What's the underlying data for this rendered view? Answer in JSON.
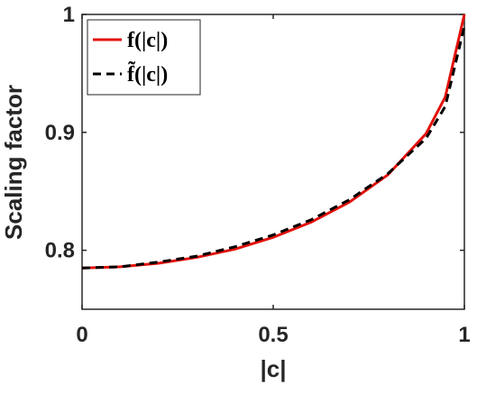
{
  "chart_data": {
    "type": "line",
    "x_label": "|c|",
    "y_label": "Scaling factor",
    "x": [
      0,
      0.1,
      0.2,
      0.3,
      0.4,
      0.5,
      0.6,
      0.7,
      0.8,
      0.9,
      0.95,
      1
    ],
    "series": [
      {
        "name": "f(|c|)",
        "color": "#e3120b",
        "dash": false,
        "values": [
          0.785,
          0.786,
          0.789,
          0.794,
          0.801,
          0.811,
          0.824,
          0.841,
          0.864,
          0.899,
          0.93,
          1.0
        ]
      },
      {
        "name": "f̃(|c|)",
        "color": "#000000",
        "dash": true,
        "values": [
          0.785,
          0.786,
          0.79,
          0.795,
          0.803,
          0.813,
          0.826,
          0.843,
          0.865,
          0.895,
          0.922,
          0.99
        ]
      }
    ],
    "xlim": [
      0,
      1
    ],
    "ylim": [
      0.75,
      1
    ],
    "xticks": [
      0,
      0.5,
      1
    ],
    "yticks": [
      0.8,
      0.9,
      1
    ],
    "legend": "top-left",
    "grid": false
  }
}
